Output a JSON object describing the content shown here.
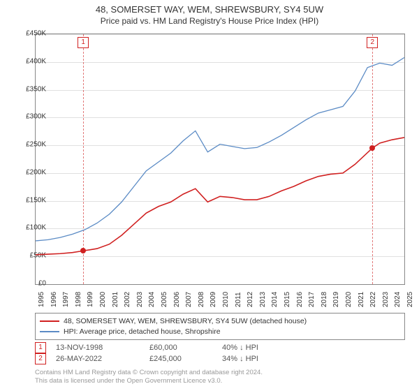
{
  "title": "48, SOMERSET WAY, WEM, SHREWSBURY, SY4 5UW",
  "subtitle": "Price paid vs. HM Land Registry's House Price Index (HPI)",
  "chart": {
    "type": "line",
    "ylim": [
      0,
      450000
    ],
    "ytick_step": 50000,
    "y_tick_labels": [
      "£0",
      "£50K",
      "£100K",
      "£150K",
      "£200K",
      "£250K",
      "£300K",
      "£350K",
      "£400K",
      "£450K"
    ],
    "xlim": [
      1995,
      2025
    ],
    "x_ticks": [
      1995,
      1996,
      1997,
      1998,
      1999,
      2000,
      2001,
      2002,
      2003,
      2004,
      2005,
      2006,
      2007,
      2008,
      2009,
      2010,
      2011,
      2012,
      2013,
      2014,
      2015,
      2016,
      2017,
      2018,
      2019,
      2020,
      2021,
      2022,
      2023,
      2024,
      2025
    ],
    "grid_color": "#e0e0e0",
    "background_color": "#ffffff",
    "border_color": "#888888",
    "series": [
      {
        "name": "price_paid",
        "color": "#d02020",
        "width": 1.6,
        "points": [
          [
            1995,
            53000
          ],
          [
            1996,
            54000
          ],
          [
            1997,
            55000
          ],
          [
            1998,
            57000
          ],
          [
            1998.87,
            60000
          ],
          [
            2000,
            64000
          ],
          [
            2001,
            72000
          ],
          [
            2002,
            88000
          ],
          [
            2003,
            108000
          ],
          [
            2004,
            128000
          ],
          [
            2005,
            140000
          ],
          [
            2006,
            148000
          ],
          [
            2007,
            162000
          ],
          [
            2008,
            172000
          ],
          [
            2009,
            148000
          ],
          [
            2010,
            158000
          ],
          [
            2011,
            156000
          ],
          [
            2012,
            152000
          ],
          [
            2013,
            152000
          ],
          [
            2014,
            158000
          ],
          [
            2015,
            168000
          ],
          [
            2016,
            176000
          ],
          [
            2017,
            186000
          ],
          [
            2018,
            194000
          ],
          [
            2019,
            198000
          ],
          [
            2020,
            200000
          ],
          [
            2021,
            216000
          ],
          [
            2022.4,
            245000
          ],
          [
            2023,
            254000
          ],
          [
            2024,
            260000
          ],
          [
            2025,
            264000
          ]
        ]
      },
      {
        "name": "hpi",
        "color": "#5b8bc5",
        "width": 1.3,
        "points": [
          [
            1995,
            78000
          ],
          [
            1996,
            80000
          ],
          [
            1997,
            84000
          ],
          [
            1998,
            90000
          ],
          [
            1999,
            98000
          ],
          [
            2000,
            110000
          ],
          [
            2001,
            126000
          ],
          [
            2002,
            148000
          ],
          [
            2003,
            176000
          ],
          [
            2004,
            204000
          ],
          [
            2005,
            220000
          ],
          [
            2006,
            236000
          ],
          [
            2007,
            258000
          ],
          [
            2008,
            276000
          ],
          [
            2009,
            238000
          ],
          [
            2010,
            252000
          ],
          [
            2011,
            248000
          ],
          [
            2012,
            244000
          ],
          [
            2013,
            246000
          ],
          [
            2014,
            256000
          ],
          [
            2015,
            268000
          ],
          [
            2016,
            282000
          ],
          [
            2017,
            296000
          ],
          [
            2018,
            308000
          ],
          [
            2019,
            314000
          ],
          [
            2020,
            320000
          ],
          [
            2021,
            348000
          ],
          [
            2022,
            390000
          ],
          [
            2023,
            398000
          ],
          [
            2024,
            394000
          ],
          [
            2025,
            408000
          ]
        ]
      }
    ],
    "markers": [
      {
        "label": "1",
        "x": 1998.87,
        "y": 60000
      },
      {
        "label": "2",
        "x": 2022.4,
        "y": 245000
      }
    ]
  },
  "legend": {
    "items": [
      {
        "color": "#d02020",
        "label": "48, SOMERSET WAY, WEM, SHREWSBURY, SY4 5UW (detached house)"
      },
      {
        "color": "#5b8bc5",
        "label": "HPI: Average price, detached house, Shropshire"
      }
    ]
  },
  "sales": [
    {
      "marker": "1",
      "date": "13-NOV-1998",
      "price": "£60,000",
      "hpi": "40% ↓ HPI"
    },
    {
      "marker": "2",
      "date": "26-MAY-2022",
      "price": "£245,000",
      "hpi": "34% ↓ HPI"
    }
  ],
  "footer_line1": "Contains HM Land Registry data © Crown copyright and database right 2024.",
  "footer_line2": "This data is licensed under the Open Government Licence v3.0."
}
